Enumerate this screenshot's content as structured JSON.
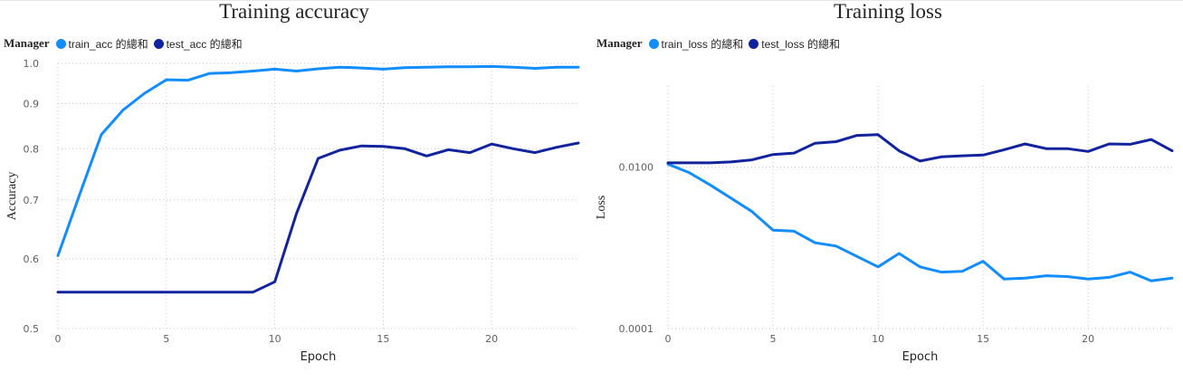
{
  "chart_data": [
    {
      "type": "line",
      "title": "Training accuracy",
      "legend_title": "Manager",
      "legend_position": "top-left",
      "xlabel": "Epoch",
      "ylabel": "Accuracy",
      "xlim": [
        0,
        24
      ],
      "ylim": [
        0.5,
        1.0
      ],
      "y_scale": "log",
      "x_ticks": [
        0,
        5,
        10,
        15,
        20
      ],
      "y_ticks": [
        0.5,
        0.6,
        0.7,
        0.8,
        0.9,
        1.0
      ],
      "y_tick_labels": [
        "0.5",
        "0.6",
        "0.7",
        "0.8",
        "0.9",
        "1.0"
      ],
      "grid": true,
      "x": [
        0,
        1,
        2,
        3,
        4,
        5,
        6,
        7,
        8,
        9,
        10,
        11,
        12,
        13,
        14,
        15,
        16,
        17,
        18,
        19,
        20,
        21,
        22,
        23,
        24
      ],
      "series": [
        {
          "name": "train_acc 的總和",
          "color": "#118DFF",
          "values": [
            0.605,
            0.71,
            0.83,
            0.885,
            0.925,
            0.958,
            0.957,
            0.974,
            0.976,
            0.98,
            0.985,
            0.98,
            0.986,
            0.99,
            0.988,
            0.985,
            0.989,
            0.99,
            0.991,
            0.991,
            0.992,
            0.99,
            0.987,
            0.99,
            0.99
          ]
        },
        {
          "name": "test_acc 的總和",
          "color": "#12239E",
          "values": [
            0.55,
            0.55,
            0.55,
            0.55,
            0.55,
            0.55,
            0.55,
            0.55,
            0.55,
            0.55,
            0.565,
            0.675,
            0.78,
            0.797,
            0.806,
            0.805,
            0.8,
            0.785,
            0.798,
            0.792,
            0.81,
            0.8,
            0.792,
            0.803,
            0.812
          ]
        }
      ]
    },
    {
      "type": "line",
      "title": "Training loss",
      "legend_title": "Manager",
      "legend_position": "top-left",
      "xlabel": "Epoch",
      "ylabel": "Loss",
      "xlim": [
        0,
        24
      ],
      "ylim": [
        0.0001,
        0.1
      ],
      "y_scale": "log",
      "x_ticks": [
        0,
        5,
        10,
        15,
        20
      ],
      "y_ticks": [
        0.0001,
        0.01
      ],
      "y_tick_labels": [
        "0.0001",
        "0.0100"
      ],
      "grid": true,
      "x": [
        0,
        1,
        2,
        3,
        4,
        5,
        6,
        7,
        8,
        9,
        10,
        11,
        12,
        13,
        14,
        15,
        16,
        17,
        18,
        19,
        20,
        21,
        22,
        23,
        24
      ],
      "series": [
        {
          "name": "train_loss 的總和",
          "color": "#118DFF",
          "values": [
            0.0108,
            0.0085,
            0.006,
            0.0041,
            0.0028,
            0.00165,
            0.0016,
            0.00115,
            0.00105,
            0.00078,
            0.00058,
            0.00085,
            0.00058,
            0.0005,
            0.00051,
            0.00068,
            0.00041,
            0.00042,
            0.00045,
            0.00044,
            0.00041,
            0.00043,
            0.0005,
            0.00039,
            0.00042
          ]
        },
        {
          "name": "test_loss 的總和",
          "color": "#12239E",
          "values": [
            0.0112,
            0.0112,
            0.0112,
            0.0115,
            0.0122,
            0.0142,
            0.0148,
            0.0196,
            0.0205,
            0.0245,
            0.025,
            0.0158,
            0.0118,
            0.0133,
            0.0137,
            0.014,
            0.0163,
            0.0192,
            0.0168,
            0.0168,
            0.0155,
            0.0192,
            0.019,
            0.0218,
            0.0158
          ]
        }
      ]
    }
  ]
}
